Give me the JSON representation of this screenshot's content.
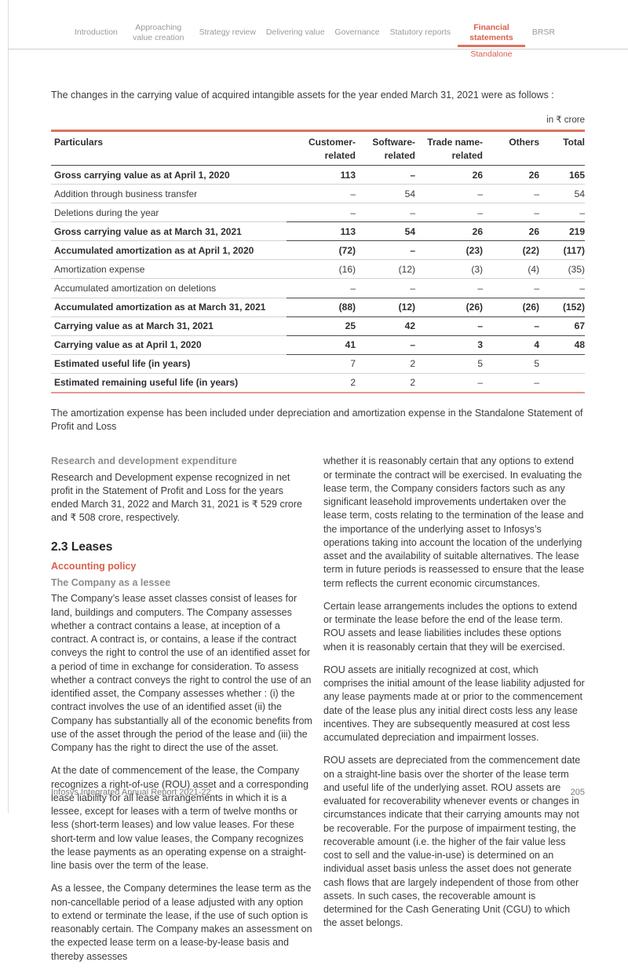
{
  "nav": {
    "items": [
      {
        "label": "Introduction",
        "active": false
      },
      {
        "label": "Approaching value creation",
        "active": false
      },
      {
        "label": "Strategy review",
        "active": false
      },
      {
        "label": "Delivering value",
        "active": false
      },
      {
        "label": "Governance",
        "active": false
      },
      {
        "label": "Statutory reports",
        "active": false
      },
      {
        "label": "Financial statements",
        "active": true
      },
      {
        "label": "BRSR",
        "active": false
      }
    ],
    "active_sub": "Standalone"
  },
  "intro": "The changes in the carrying value of acquired intangible assets for the year ended March 31, 2021 were as follows :",
  "table": {
    "unit": "in ₹ crore",
    "columns": [
      "Particulars",
      "Customer-related",
      "Software-related",
      "Trade name-related",
      "Others",
      "Total"
    ],
    "rows": [
      {
        "label": "Gross carrying value as at April 1, 2020",
        "values": [
          "113",
          "–",
          "26",
          "26",
          "165"
        ],
        "bold": true,
        "bold_label_only": false,
        "strong_rule": false
      },
      {
        "label": "Addition through business transfer",
        "values": [
          "–",
          "54",
          "–",
          "–",
          "54"
        ],
        "bold": false,
        "bold_label_only": false,
        "strong_rule": false
      },
      {
        "label": "Deletions during the year",
        "values": [
          "–",
          "–",
          "–",
          "–",
          "–"
        ],
        "bold": false,
        "bold_label_only": false,
        "strong_rule": true
      },
      {
        "label": "Gross carrying value as at March 31, 2021",
        "values": [
          "113",
          "54",
          "26",
          "26",
          "219"
        ],
        "bold": true,
        "bold_label_only": false,
        "strong_rule": true
      },
      {
        "label": "Accumulated amortization as at April 1, 2020",
        "values": [
          "(72)",
          "–",
          "(23)",
          "(22)",
          "(117)"
        ],
        "bold": true,
        "bold_label_only": false,
        "strong_rule": false
      },
      {
        "label": "Amortization expense",
        "values": [
          "(16)",
          "(12)",
          "(3)",
          "(4)",
          "(35)"
        ],
        "bold": false,
        "bold_label_only": false,
        "strong_rule": false
      },
      {
        "label": "Accumulated amortization on deletions",
        "values": [
          "–",
          "–",
          "–",
          "–",
          "–"
        ],
        "bold": false,
        "bold_label_only": false,
        "strong_rule": true
      },
      {
        "label": "Accumulated amortization as at March 31, 2021",
        "values": [
          "(88)",
          "(12)",
          "(26)",
          "(26)",
          "(152)"
        ],
        "bold": true,
        "bold_label_only": false,
        "strong_rule": true
      },
      {
        "label": "Carrying value as at March 31, 2021",
        "values": [
          "25",
          "42",
          "–",
          "–",
          "67"
        ],
        "bold": true,
        "bold_label_only": false,
        "strong_rule": true
      },
      {
        "label": "Carrying value as at April 1, 2020",
        "values": [
          "41",
          "–",
          "3",
          "4",
          "48"
        ],
        "bold": true,
        "bold_label_only": false,
        "strong_rule": true
      },
      {
        "label": "Estimated useful life (in years)",
        "values": [
          "7",
          "2",
          "5",
          "5",
          ""
        ],
        "bold": false,
        "bold_label_only": true,
        "strong_rule": false
      },
      {
        "label": "Estimated remaining useful life (in years)",
        "values": [
          "2",
          "2",
          "–",
          "–",
          ""
        ],
        "bold": false,
        "bold_label_only": true,
        "strong_rule": false
      }
    ]
  },
  "note": "The amortization expense has been included under depreciation and amortization expense in the Standalone Statement of Profit and Loss",
  "left_column": {
    "heading_rnd": "Research and development expenditure",
    "para_rnd": "Research and Development expense recognized in net profit in the Statement of Profit and Loss for the years ended March 31, 2022 and March 31, 2021 is ₹ 529 crore and ₹ 508 crore, respectively.",
    "section_title": "2.3 Leases",
    "heading_accounting_policy": "Accounting policy",
    "heading_lessee": "The Company as a lessee",
    "para_lessee_1": "The Company’s lease asset classes consist of leases for land, buildings and computers. The Company assesses whether a contract contains a lease, at inception of a contract. A contract is, or contains, a lease if the contract conveys the right to control the use of an identified asset for a period of time in exchange for consideration. To assess whether a contract conveys the right to control the use of an identified asset, the Company assesses whether : (i) the contract involves the use of an identified asset (ii) the Company has substantially all of the economic benefits from use of the asset through the period of the lease and (iii) the Company has the right to direct the use of the asset.",
    "para_lessee_2": "At the date of commencement of the lease, the Company recognizes a right-of-use (ROU) asset and a corresponding lease liability for all lease arrangements in which it is a lessee, except for leases with a term of twelve months or less (short-term leases) and low value leases. For these short-term and low value leases, the Company recognizes the lease payments as an operating expense on a straight-line basis over the term of the lease.",
    "para_lessee_3": "As a lessee, the Company determines the lease term as the non-cancellable period of a lease adjusted with any option to extend or terminate the lease, if the use of such option is reasonably certain. The Company makes an assessment on the expected lease term on a lease-by-lease basis and thereby assesses"
  },
  "right_column": {
    "para_1": "whether it is reasonably certain that any options to extend or terminate the contract will be exercised. In evaluating the lease term, the Company considers factors such as any significant leasehold improvements undertaken over the lease term, costs relating to the termination of the lease and the importance of the underlying asset to Infosys’s operations taking into account the location of the underlying asset and the availability of suitable alternatives. The lease term in future periods is reassessed to ensure that the lease term reflects the current economic circumstances.",
    "para_2": "Certain lease arrangements includes the options to extend or terminate the lease before the end of the lease term. ROU assets and lease liabilities includes these options when it is reasonably certain that they will be exercised.",
    "para_3": "ROU assets are initially recognized at cost, which comprises the initial amount of the lease liability adjusted for any lease payments made at or prior to the commencement date of the lease plus any initial direct costs less any lease incentives. They are subsequently measured at cost less accumulated depreciation and impairment losses.",
    "para_4": "ROU assets are depreciated from the commencement date on a straight-line basis over the shorter of the lease term and useful life of the underlying asset. ROU assets are evaluated for recoverability whenever events or changes in circumstances indicate that their carrying amounts may not be recoverable. For the purpose of impairment testing, the recoverable amount (i.e. the higher of the fair value less cost to sell and the value-in-use) is determined on an individual asset basis unless the asset does not generate cash flows that are largely independent of those from other assets. In such cases, the recoverable amount is determined for the Cash Generating Unit (CGU) to which the asset belongs."
  },
  "footer": {
    "report_title": "Infosys Integrated Annual Report 2021-22",
    "page_number": "205"
  },
  "colors": {
    "accent_red_text": "#d95f4c",
    "accent_salmon_rule": "#dd7360",
    "heading_gray": "#8c8c8c",
    "body_text": "#3b3b3b"
  }
}
